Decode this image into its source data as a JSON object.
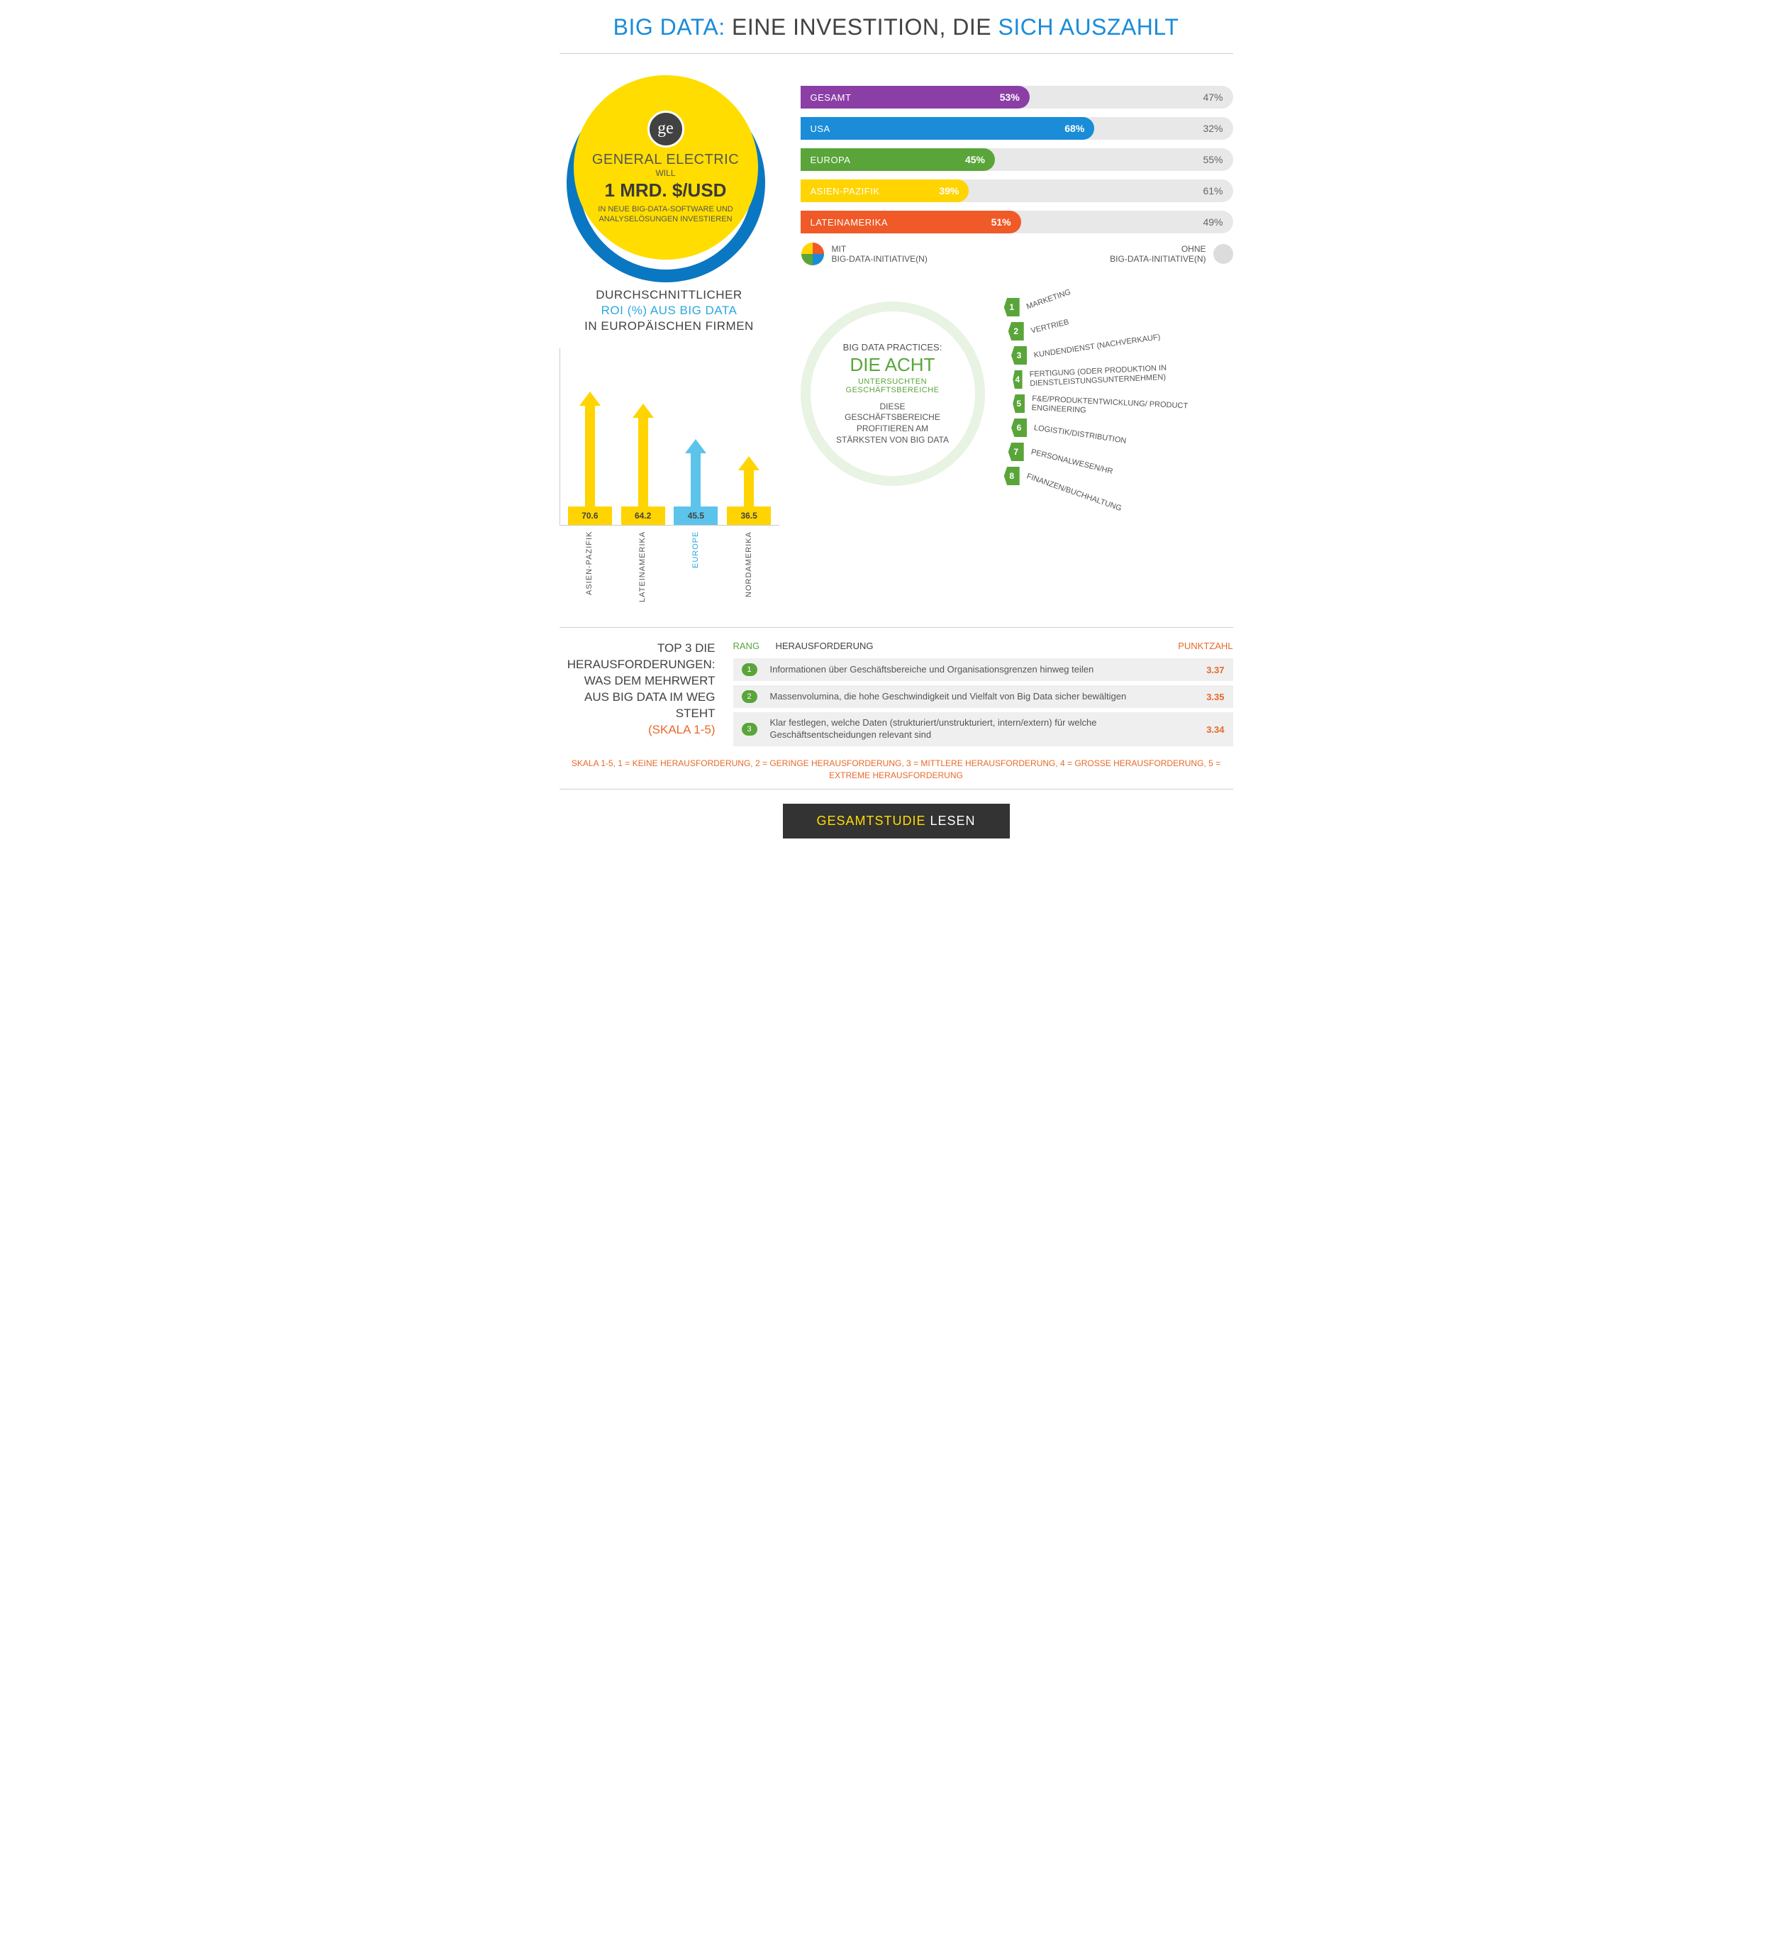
{
  "title": {
    "part1": "BIG DATA:",
    "part2": " EINE INVESTITION, DIE ",
    "part3": "SICH AUSZAHLT"
  },
  "ge": {
    "logo_text": "ge",
    "name": "GENERAL ELECTRIC",
    "will": "WILL",
    "amount": "1 MRD. $/USD",
    "desc": "IN NEUE BIG-DATA-SOFTWARE UND ANALYSELÖSUNGEN INVESTIEREN",
    "circle_color": "#ffdd00",
    "arc_color": "#0a77c2"
  },
  "bars": {
    "rows": [
      {
        "label": "GESAMT",
        "value": 53,
        "rest": 47,
        "color": "#8b3fa6"
      },
      {
        "label": "USA",
        "value": 68,
        "rest": 32,
        "color": "#1a8cd8"
      },
      {
        "label": "EUROPA",
        "value": 45,
        "rest": 55,
        "color": "#5aa53a"
      },
      {
        "label": "ASIEN-PAZIFIK",
        "value": 39,
        "rest": 61,
        "color": "#ffd400"
      },
      {
        "label": "LATEINAMERIKA",
        "value": 51,
        "rest": 49,
        "color": "#ef5a28"
      }
    ],
    "legend_with": "MIT\nBIG-DATA-INITIATIVE(N)",
    "legend_without": "OHNE\nBIG-DATA-INITIATIVE(N)",
    "bg_color": "#e8e8e8"
  },
  "roi": {
    "title_l1": "DURCHSCHNITTLICHER",
    "title_l2": "ROI (%) AUS BIG DATA",
    "title_l3": "IN EUROPÄISCHEN FIRMEN",
    "max": 75,
    "items": [
      {
        "label": "ASIEN-PAZIFIK",
        "value": 70.6,
        "color": "#ffd400",
        "text_color": "#555"
      },
      {
        "label": "LATEINAMERIKA",
        "value": 64.2,
        "color": "#ffd400",
        "text_color": "#555"
      },
      {
        "label": "EUROPE",
        "value": 45.5,
        "color": "#5cc4eb",
        "text_color": "#2aa7e0"
      },
      {
        "label": "NORDAMERIKA",
        "value": 36.5,
        "color": "#ffd400",
        "text_color": "#555"
      }
    ]
  },
  "practices": {
    "small": "BIG DATA PRACTICES:",
    "big": "DIE ACHT",
    "sub": "UNTERSUCHTEN GESCHÄFTSBEREICHE",
    "desc": "DIESE GESCHÄFTSBEREICHE PROFITIEREN AM STÄRKSTEN VON BIG DATA",
    "items": [
      "MARKETING",
      "VERTRIEB",
      "KUNDENDIENST (NACHVERKAUF)",
      "FERTIGUNG (ODER PRODUKTION IN DIENSTLEISTUNGSUNTERNEHMEN)",
      "F&E/PRODUKTENTWICKLUNG/ PRODUCT ENGINEERING",
      "LOGISTIK/DISTRIBUTION",
      "PERSONALWESEN/HR",
      "FINANZEN/BUCHHALTUNG"
    ],
    "badge_color": "#5aa53a"
  },
  "challenges": {
    "heading": "TOP 3 DIE HERAUSFORDERUNGEN: WAS DEM MEHRWERT AUS BIG DATA IM WEG STEHT",
    "scale": "(SKALA 1-5)",
    "col_rang": "RANG",
    "col_her": "HERAUSFORDERUNG",
    "col_pkt": "PUNKTZAHL",
    "rows": [
      {
        "n": 1,
        "text": "Informationen über Geschäftsbereiche und Organisationsgrenzen hinweg teilen",
        "score": "3.37"
      },
      {
        "n": 2,
        "text": "Massenvolumina, die hohe Geschwindigkeit und Vielfalt von Big Data sicher bewältigen",
        "score": "3.35"
      },
      {
        "n": 3,
        "text": "Klar festlegen, welche Daten (strukturiert/unstrukturiert, intern/extern) für welche Geschäftsentscheidungen relevant sind",
        "score": "3.34"
      }
    ],
    "note": "SKALA 1-5, 1 = KEINE HERAUSFORDERUNG, 2 = GERINGE HERAUSFORDERUNG, 3 = MITTLERE HERAUSFORDERUNG, 4 = GROSSE HERAUSFORDERUNG, 5 = EXTREME HERAUSFORDERUNG"
  },
  "cta": {
    "part1": "GESAMTSTUDIE",
    "part2": " LESEN"
  }
}
